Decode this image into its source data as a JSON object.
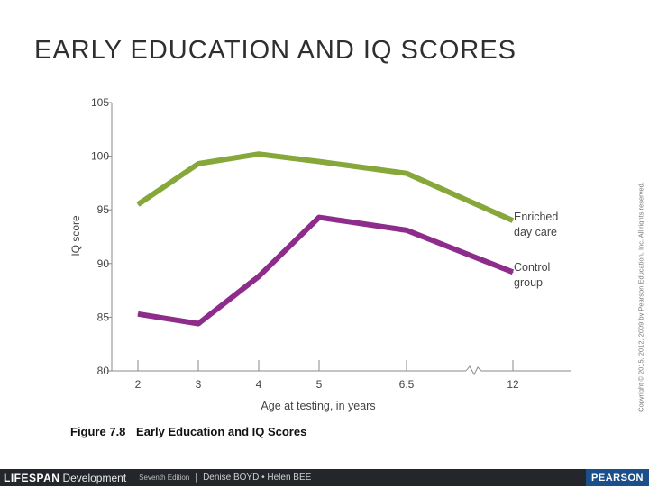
{
  "slide": {
    "title": "EARLY EDUCATION AND IQ SCORES"
  },
  "figure": {
    "number": "Figure 7.8",
    "title": "Early Education and IQ Scores"
  },
  "copyright": "Copyright © 2015, 2012, 2009 by Pearson Education, Inc. All rights reserved.",
  "footer": {
    "brand_main": "LIFESPAN",
    "brand_sub": "Development",
    "edition": "Seventh Edition",
    "separator": "|",
    "authors": "Denise BOYD • Helen BEE",
    "publisher": "PEARSON"
  },
  "colors": {
    "enriched": "#86a83a",
    "control": "#8e2c8c",
    "axis": "#8a8a8a",
    "text": "#444444"
  },
  "chart_data": {
    "type": "line",
    "title": "",
    "xlabel": "Age at testing, in years",
    "ylabel": "IQ score",
    "categories": [
      "2",
      "3",
      "4",
      "5",
      "6.5",
      "12"
    ],
    "ylim": [
      80,
      105
    ],
    "yticks": [
      80,
      85,
      90,
      95,
      100,
      105
    ],
    "axis_break_between": [
      "6.5",
      "12"
    ],
    "grid": false,
    "series": [
      {
        "name": "Enriched day care",
        "label_lines": [
          "Enriched",
          "day care"
        ],
        "values": [
          95.5,
          99.3,
          100.2,
          99.5,
          98.4,
          94.0
        ]
      },
      {
        "name": "Control group",
        "label_lines": [
          "Control",
          "group"
        ],
        "values": [
          85.3,
          84.4,
          88.8,
          94.3,
          93.1,
          89.2
        ]
      }
    ]
  }
}
